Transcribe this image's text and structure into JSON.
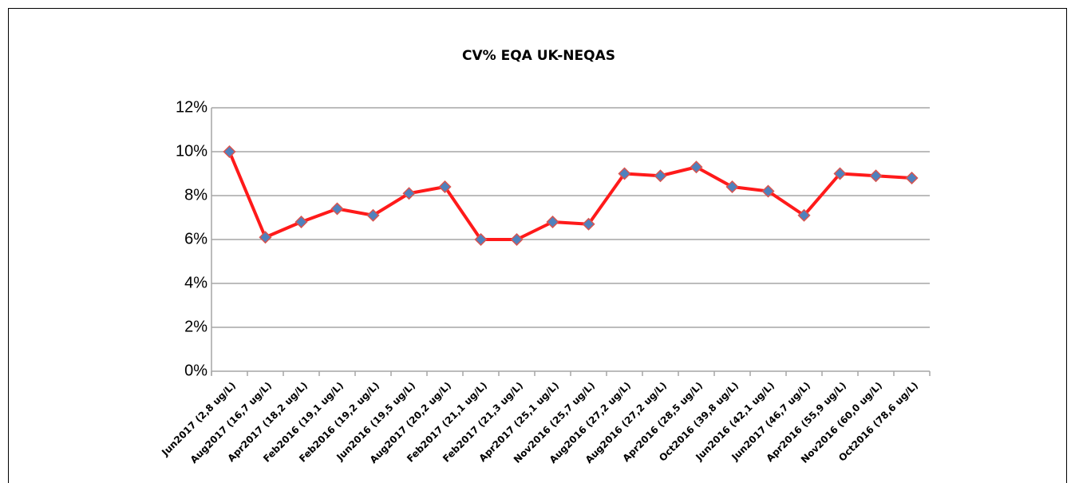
{
  "chart_data": {
    "type": "line",
    "title": "CV% EQA UK-NEQAS",
    "categories": [
      "Jun2017 (2,8 ug/L)",
      "Aug2017 (16,7 ug/L)",
      "Apr2017 (18,2 ug/L)",
      "Feb2016 (19,1 ug/L)",
      "Feb2016 (19,2 ug/L)",
      "Jun2016 (19,5 ug/L)",
      "Aug2017 (20,2 ug/L)",
      "Feb2017 (21,1 ug/L)",
      "Feb2017 (21,3 ug/L)",
      "Apr2017 (25,1 ug/L)",
      "Nov2016 (25,7 ug/L)",
      "Aug2016 (27,2 ug/L)",
      "Aug2016 (27,2 ug/L)",
      "Apr2016 (28,5 ug/L)",
      "Oct2016 (39,8 ug/L)",
      "Jun2016 (42,1 ug/L)",
      "Jun2017 (46,7 ug/L)",
      "Apr2016 (55,9 ug/L)",
      "Nov2016 (60,0 ug/L)",
      "Oct2016 (78,6 ug/L)"
    ],
    "values": [
      10,
      6.1,
      6.8,
      7.4,
      7.1,
      8.1,
      8.4,
      6.0,
      6.0,
      6.8,
      6.7,
      9.0,
      8.9,
      9.3,
      8.4,
      8.2,
      7.1,
      9.0,
      8.9,
      8.8
    ],
    "color": "#ff1a1a",
    "marker_color": "#4f81bd",
    "ylim": [
      0,
      12
    ],
    "yticks": [
      {
        "value": 0,
        "label": "0%"
      },
      {
        "value": 2,
        "label": "2%"
      },
      {
        "value": 4,
        "label": "4%"
      },
      {
        "value": 6,
        "label": "6%"
      },
      {
        "value": 8,
        "label": "8%"
      },
      {
        "value": 10,
        "label": "10%"
      },
      {
        "value": 12,
        "label": "12%"
      }
    ],
    "grid": true
  }
}
